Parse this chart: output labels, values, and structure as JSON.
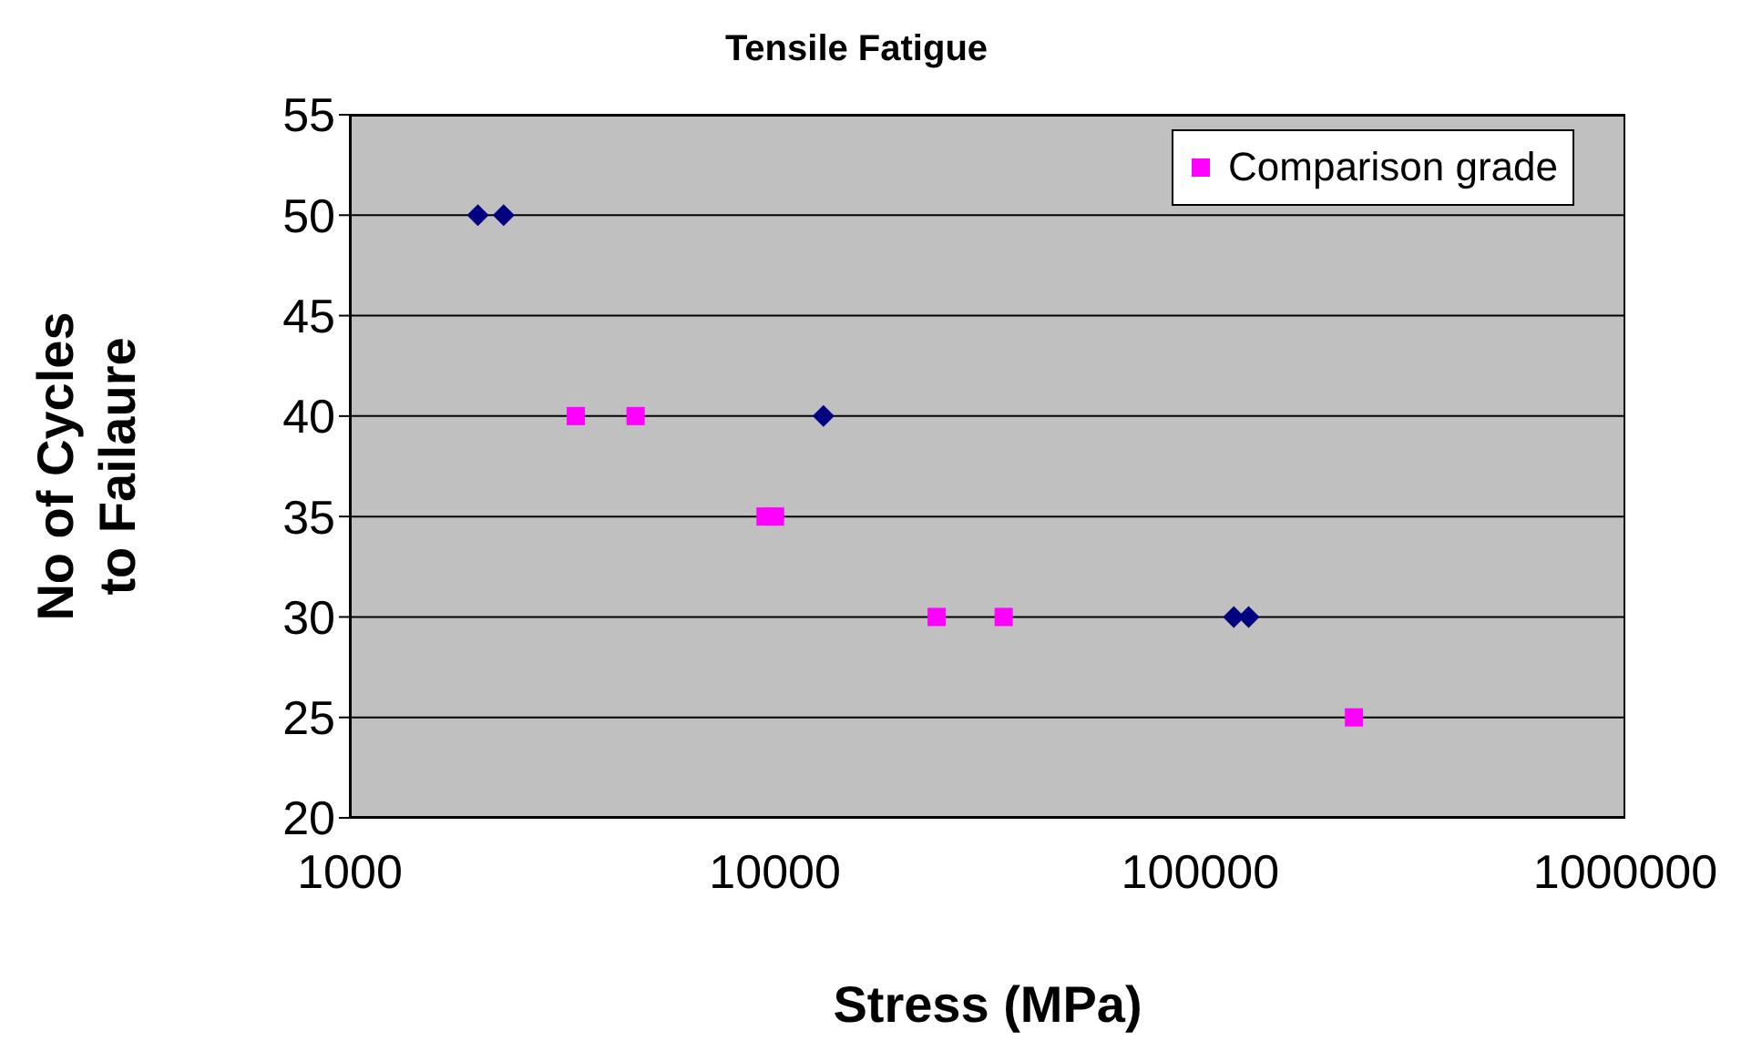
{
  "chart_data": {
    "type": "scatter",
    "title": "Tensile Fatigue",
    "xlabel": "Stress (MPa)",
    "ylabel": "No of Cycles to Failaure",
    "log": "x",
    "xlim": [
      1000,
      1000000
    ],
    "xticks": [
      1000,
      10000,
      100000,
      1000000
    ],
    "ylim": [
      20,
      55
    ],
    "yticks": [
      20,
      25,
      30,
      35,
      40,
      45,
      50,
      55
    ],
    "grid": "y",
    "legend": "top right",
    "series": [
      {
        "color": "#000080",
        "marker": "diamond",
        "x": [
          2000,
          2300,
          13000,
          120000,
          130000
        ],
        "values": [
          50,
          50,
          40,
          30,
          30
        ]
      },
      {
        "name": "Comparison grade",
        "color": "#ff00ff",
        "marker": "square",
        "x": [
          3400,
          4700,
          9500,
          10000,
          24000,
          34500,
          230000
        ],
        "values": [
          40,
          40,
          35,
          35,
          30,
          30,
          25
        ]
      }
    ]
  }
}
